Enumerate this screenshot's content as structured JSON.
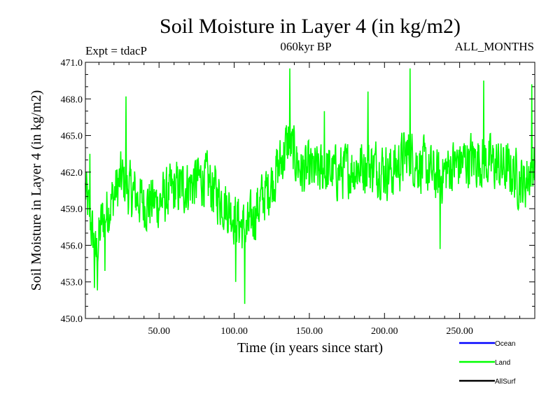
{
  "chart_data": {
    "type": "line",
    "title": "Soil Moisture in Layer 4 (in kg/m2)",
    "experiment": "Expt = tdacP",
    "period": "060kyr BP",
    "months": "ALL_MONTHS",
    "xlabel": "Time (in years since start)",
    "ylabel": "Soil Moisture in Layer 4 (in kg/m2)",
    "xlim": [
      1,
      300
    ],
    "ylim": [
      450,
      471
    ],
    "xticks": [
      {
        "value": 50,
        "label": "50.00"
      },
      {
        "value": 100,
        "label": "100.00"
      },
      {
        "value": 150,
        "label": "150.00"
      },
      {
        "value": 200,
        "label": "200.00"
      },
      {
        "value": 250,
        "label": "250.00"
      }
    ],
    "yticks": [
      {
        "value": 450,
        "label": "450.0"
      },
      {
        "value": 453,
        "label": "453.0"
      },
      {
        "value": 456,
        "label": "456.0"
      },
      {
        "value": 459,
        "label": "459.0"
      },
      {
        "value": 462,
        "label": "462.0"
      },
      {
        "value": 465,
        "label": "465.0"
      },
      {
        "value": 468,
        "label": "468.0"
      },
      {
        "value": 471,
        "label": "471.0"
      }
    ],
    "legend": [
      {
        "name": "Ocean",
        "color": "#0000ff"
      },
      {
        "name": "Land",
        "color": "#00ff00"
      },
      {
        "name": "AllSurf",
        "color": "#000000"
      }
    ],
    "series": [
      {
        "name": "Land",
        "color": "#00ff00",
        "points_per_year": 4,
        "anchors": [
          [
            1,
            460.5
          ],
          [
            5,
            457.5
          ],
          [
            8,
            455.0
          ],
          [
            12,
            458.0
          ],
          [
            18,
            459.5
          ],
          [
            25,
            461.5
          ],
          [
            30,
            460.5
          ],
          [
            40,
            459.5
          ],
          [
            50,
            459.5
          ],
          [
            60,
            460.5
          ],
          [
            70,
            461.0
          ],
          [
            80,
            461.5
          ],
          [
            90,
            460.0
          ],
          [
            100,
            458.5
          ],
          [
            108,
            457.0
          ],
          [
            115,
            459.0
          ],
          [
            122,
            460.5
          ],
          [
            130,
            462.5
          ],
          [
            136,
            464.5
          ],
          [
            145,
            462.0
          ],
          [
            155,
            462.0
          ],
          [
            170,
            462.0
          ],
          [
            185,
            462.5
          ],
          [
            195,
            462.5
          ],
          [
            205,
            462.0
          ],
          [
            215,
            463.5
          ],
          [
            225,
            462.5
          ],
          [
            235,
            461.5
          ],
          [
            245,
            462.5
          ],
          [
            255,
            463.0
          ],
          [
            265,
            463.0
          ],
          [
            275,
            462.5
          ],
          [
            285,
            462.0
          ],
          [
            293,
            461.0
          ],
          [
            300,
            463.0
          ]
        ],
        "noise_amplitude": 2.2,
        "extremes": [
          [
            4,
            463.5
          ],
          [
            7,
            452.5
          ],
          [
            9,
            452.3
          ],
          [
            28,
            468.2
          ],
          [
            107,
            451.2
          ],
          [
            101,
            453.0
          ],
          [
            137,
            470.5
          ],
          [
            189,
            468.6
          ],
          [
            217,
            470.5
          ],
          [
            237,
            455.7
          ],
          [
            266,
            469.5
          ],
          [
            298,
            469.2
          ],
          [
            14,
            453.9
          ],
          [
            160,
            467.0
          ]
        ]
      }
    ]
  }
}
